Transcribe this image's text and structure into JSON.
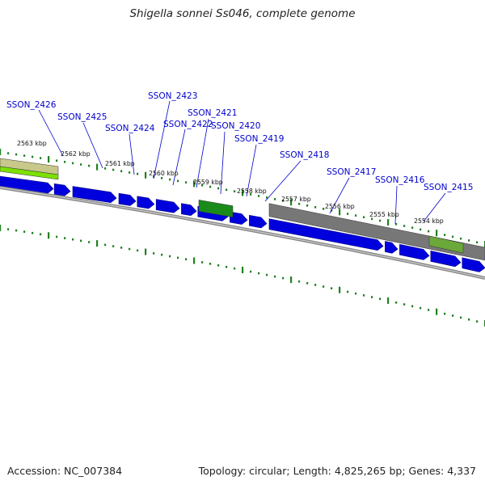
{
  "title": "Shigella sonnei Ss046, complete genome",
  "footer": {
    "accession": "Accession: NC_007384",
    "stats": "Topology: circular; Length: 4,825,265 bp; Genes: 4,337"
  },
  "colors": {
    "cds": "#0000dd",
    "rna": "#1a8a1a",
    "gene_track": "#777777",
    "highlight": "#7ce000",
    "gene_label": "#0000cc",
    "tick": "#208020",
    "backbone": "#888888"
  },
  "kbp_ticks": [
    "2563 kbp",
    "2562 kbp",
    "2561 kbp",
    "2560 kbp",
    "2559 kbp",
    "2558 kbp",
    "2557 kbp",
    "2556 kbp",
    "2555 kbp",
    "2554 kbp"
  ],
  "gene_labels": [
    "SSON_2426",
    "SSON_2425",
    "SSON_2424",
    "SSON_2423",
    "SSON_2422",
    "SSON_2421",
    "SSON_2420",
    "SSON_2419",
    "SSON_2418",
    "SSON_2417",
    "SSON_2416",
    "SSON_2415"
  ]
}
